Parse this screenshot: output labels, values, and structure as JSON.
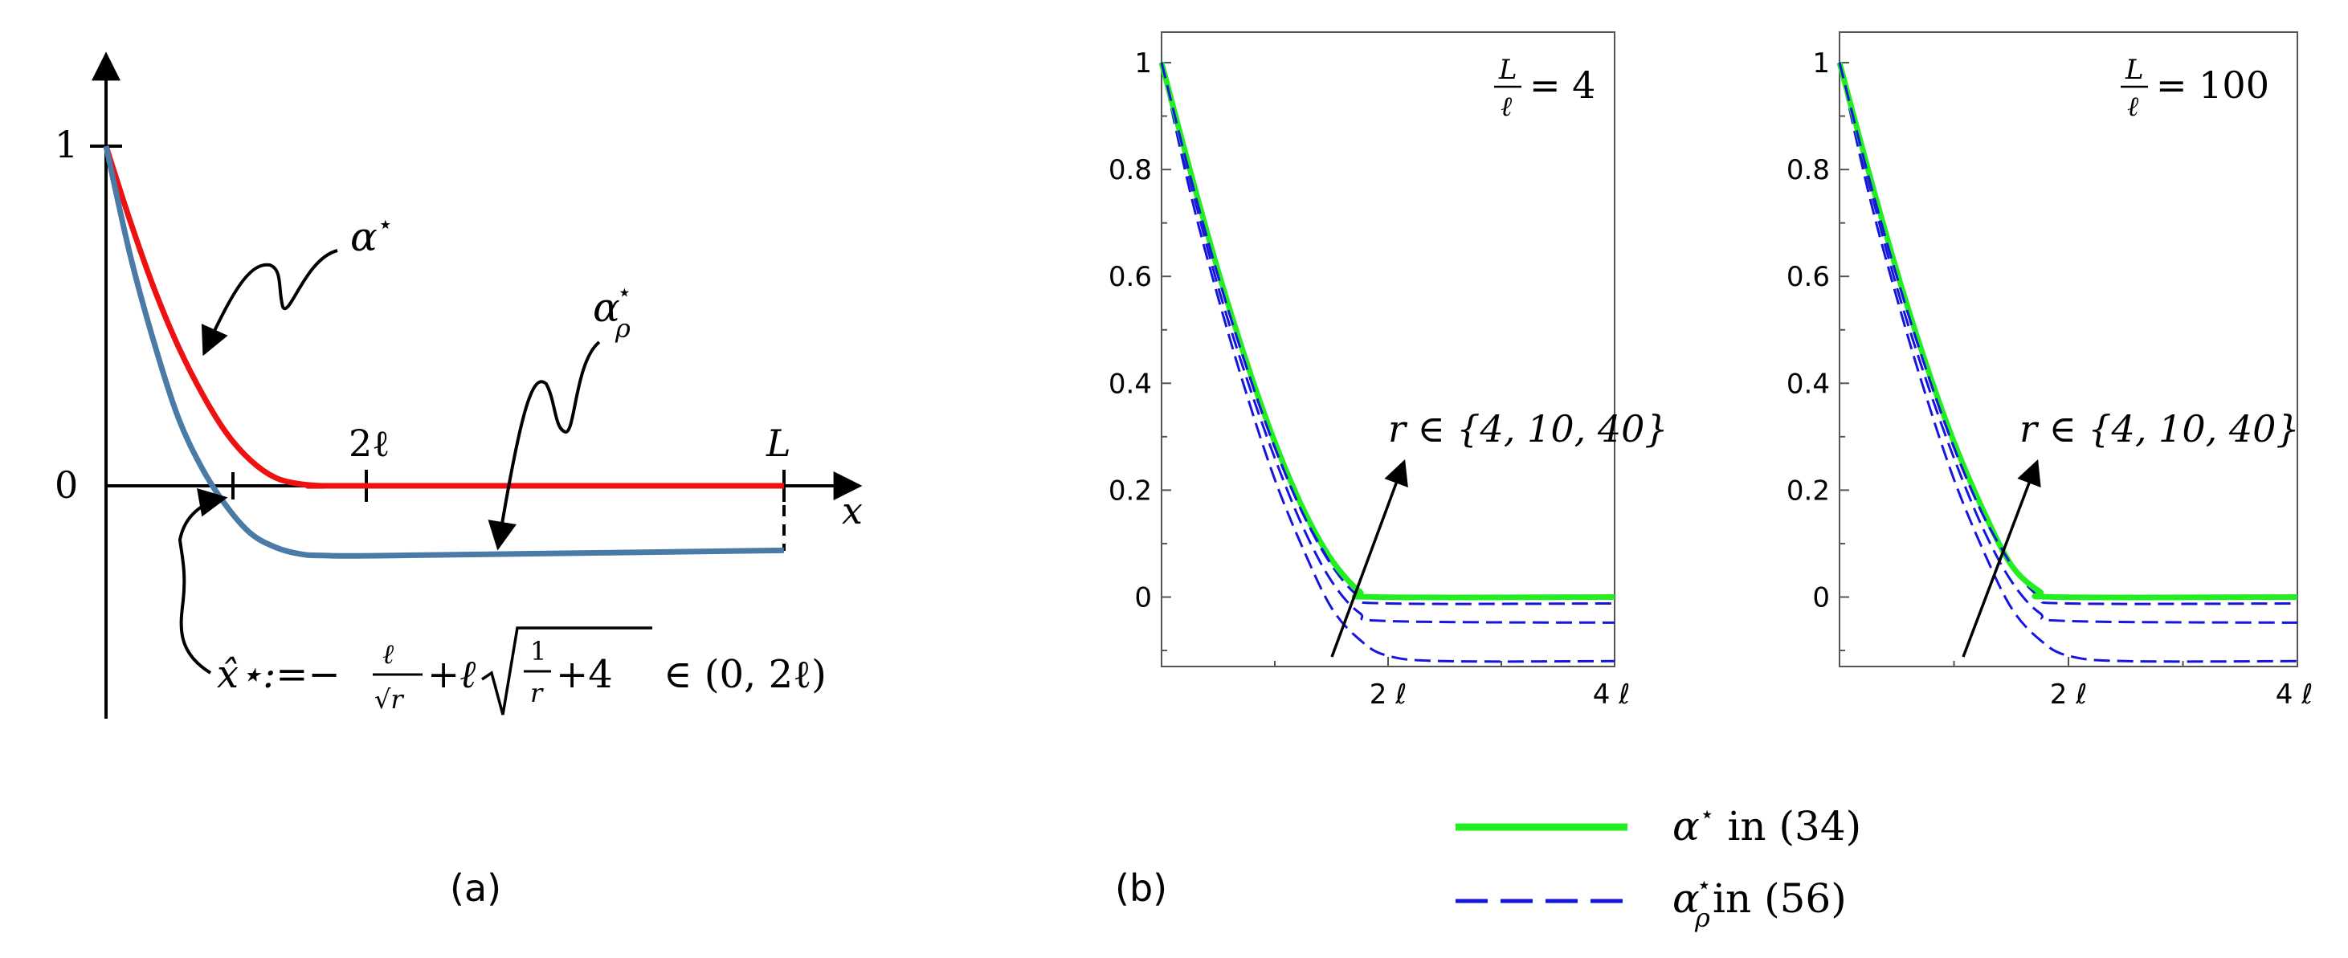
{
  "chart_data": [
    {
      "panel": "a",
      "type": "line",
      "caption": "(a)",
      "axes": {
        "x_name": "x",
        "y_ticks": [
          "1",
          "0"
        ],
        "x_ticks": [
          "2ℓ",
          "L"
        ]
      },
      "xlim": [
        0,
        3.0
      ],
      "ylim": [
        -0.6,
        1.25
      ],
      "series": [
        {
          "name": "α⋆",
          "color": "#ee1111",
          "points": [
            [
              0,
              1
            ],
            [
              0.1,
              0.78
            ],
            [
              0.2,
              0.58
            ],
            [
              0.3,
              0.41
            ],
            [
              0.4,
              0.27
            ],
            [
              0.5,
              0.155
            ],
            [
              0.6,
              0.075
            ],
            [
              0.7,
              0.025
            ],
            [
              0.8,
              0.006
            ],
            [
              0.9,
              0.0
            ],
            [
              1.0,
              0.0
            ],
            [
              3.0,
              0.0
            ]
          ]
        },
        {
          "name": "α⋆ρ",
          "color": "#4a7aa6",
          "points": [
            [
              0,
              1
            ],
            [
              0.1,
              0.68
            ],
            [
              0.2,
              0.42
            ],
            [
              0.3,
              0.2
            ],
            [
              0.4,
              0.05
            ],
            [
              0.5,
              -0.06
            ],
            [
              0.6,
              -0.14
            ],
            [
              0.7,
              -0.18
            ],
            [
              0.8,
              -0.2
            ],
            [
              0.9,
              -0.205
            ],
            [
              1.2,
              -0.205
            ],
            [
              3.0,
              -0.19
            ]
          ]
        }
      ],
      "annotations": {
        "alpha_label": "α",
        "star": "⋆",
        "rho": "ρ",
        "formula_left": "x̂⋆:=−",
        "frac_num": "ℓ",
        "frac_den": "√r",
        "formula_mid": "+ℓ",
        "sqrt_frac_num": "1",
        "sqrt_frac_den": "r",
        "sqrt_plus": "+4",
        "formula_right": "∈ (0, 2ℓ)"
      }
    },
    {
      "panel": "b",
      "type": "line",
      "caption": "(b)",
      "subplots": [
        {
          "ratio_num": "L",
          "ratio_den": "ℓ",
          "ratio_val": "= 4",
          "r_label": "r ∈ {4, 10, 40}",
          "xlim": [
            0,
            4
          ],
          "ylim": [
            -0.13,
            1.0
          ],
          "y_ticks": [
            "0",
            "0.2",
            "0.4",
            "0.6",
            "0.8",
            "1"
          ],
          "x_ticks": [
            "2 ℓ",
            "4 ℓ"
          ],
          "green": [
            [
              0,
              1
            ],
            [
              0.25,
              0.8
            ],
            [
              0.5,
              0.61
            ],
            [
              0.75,
              0.44
            ],
            [
              1.0,
              0.29
            ],
            [
              1.25,
              0.165
            ],
            [
              1.5,
              0.07
            ],
            [
              1.75,
              0.01
            ],
            [
              1.9,
              0.0
            ],
            [
              4,
              0.0
            ]
          ],
          "dashed": [
            [
              [
                0,
                1
              ],
              [
                0.25,
                0.79
              ],
              [
                0.5,
                0.6
              ],
              [
                0.75,
                0.43
              ],
              [
                1.0,
                0.28
              ],
              [
                1.25,
                0.155
              ],
              [
                1.5,
                0.06
              ],
              [
                1.75,
                0.0
              ],
              [
                2.0,
                -0.012
              ],
              [
                4,
                -0.012
              ]
            ],
            [
              [
                0,
                1
              ],
              [
                0.25,
                0.78
              ],
              [
                0.5,
                0.58
              ],
              [
                0.75,
                0.41
              ],
              [
                1.0,
                0.26
              ],
              [
                1.25,
                0.13
              ],
              [
                1.5,
                0.03
              ],
              [
                1.75,
                -0.03
              ],
              [
                2.0,
                -0.045
              ],
              [
                4,
                -0.048
              ]
            ],
            [
              [
                0,
                1
              ],
              [
                0.25,
                0.76
              ],
              [
                0.5,
                0.56
              ],
              [
                0.75,
                0.38
              ],
              [
                1.0,
                0.22
              ],
              [
                1.25,
                0.09
              ],
              [
                1.5,
                -0.02
              ],
              [
                1.75,
                -0.08
              ],
              [
                2.0,
                -0.11
              ],
              [
                2.5,
                -0.12
              ],
              [
                4,
                -0.12
              ]
            ]
          ]
        },
        {
          "ratio_num": "L",
          "ratio_den": "ℓ",
          "ratio_val": "= 100",
          "r_label": "r ∈ {4, 10, 40}",
          "xlim": [
            0,
            4
          ],
          "ylim": [
            -0.13,
            1.0
          ],
          "y_ticks": [
            "0",
            "0.2",
            "0.4",
            "0.6",
            "0.8",
            "1"
          ],
          "x_ticks": [
            "2 ℓ",
            "4 ℓ"
          ],
          "green": [
            [
              0,
              1
            ],
            [
              0.25,
              0.8
            ],
            [
              0.5,
              0.61
            ],
            [
              0.75,
              0.44
            ],
            [
              1.0,
              0.29
            ],
            [
              1.25,
              0.165
            ],
            [
              1.5,
              0.06
            ],
            [
              1.75,
              0.01
            ],
            [
              1.9,
              0.0
            ],
            [
              4,
              0.0
            ]
          ],
          "dashed": [
            [
              [
                0,
                1
              ],
              [
                0.25,
                0.79
              ],
              [
                0.5,
                0.6
              ],
              [
                0.75,
                0.43
              ],
              [
                1.0,
                0.28
              ],
              [
                1.25,
                0.155
              ],
              [
                1.5,
                0.06
              ],
              [
                1.75,
                0.0
              ],
              [
                2.0,
                -0.012
              ],
              [
                4,
                -0.012
              ]
            ],
            [
              [
                0,
                1
              ],
              [
                0.25,
                0.78
              ],
              [
                0.5,
                0.58
              ],
              [
                0.75,
                0.41
              ],
              [
                1.0,
                0.26
              ],
              [
                1.25,
                0.13
              ],
              [
                1.5,
                0.03
              ],
              [
                1.75,
                -0.03
              ],
              [
                2.0,
                -0.045
              ],
              [
                4,
                -0.048
              ]
            ],
            [
              [
                0,
                1
              ],
              [
                0.25,
                0.76
              ],
              [
                0.5,
                0.56
              ],
              [
                0.75,
                0.38
              ],
              [
                1.0,
                0.22
              ],
              [
                1.25,
                0.09
              ],
              [
                1.5,
                -0.02
              ],
              [
                1.75,
                -0.08
              ],
              [
                2.0,
                -0.11
              ],
              [
                2.5,
                -0.12
              ],
              [
                4,
                -0.12
              ]
            ]
          ]
        }
      ],
      "legend": [
        {
          "label": "α⋆ in (34)",
          "color": "#22ee22",
          "style": "solid"
        },
        {
          "label": "α⋆ρ in (56)",
          "color": "#1515dd",
          "style": "dashed"
        }
      ],
      "legend_parts": {
        "alpha": "α",
        "star": "⋆",
        "rho": "ρ",
        "green_text": " in (34)",
        "blue_text": " in (56)"
      }
    }
  ]
}
